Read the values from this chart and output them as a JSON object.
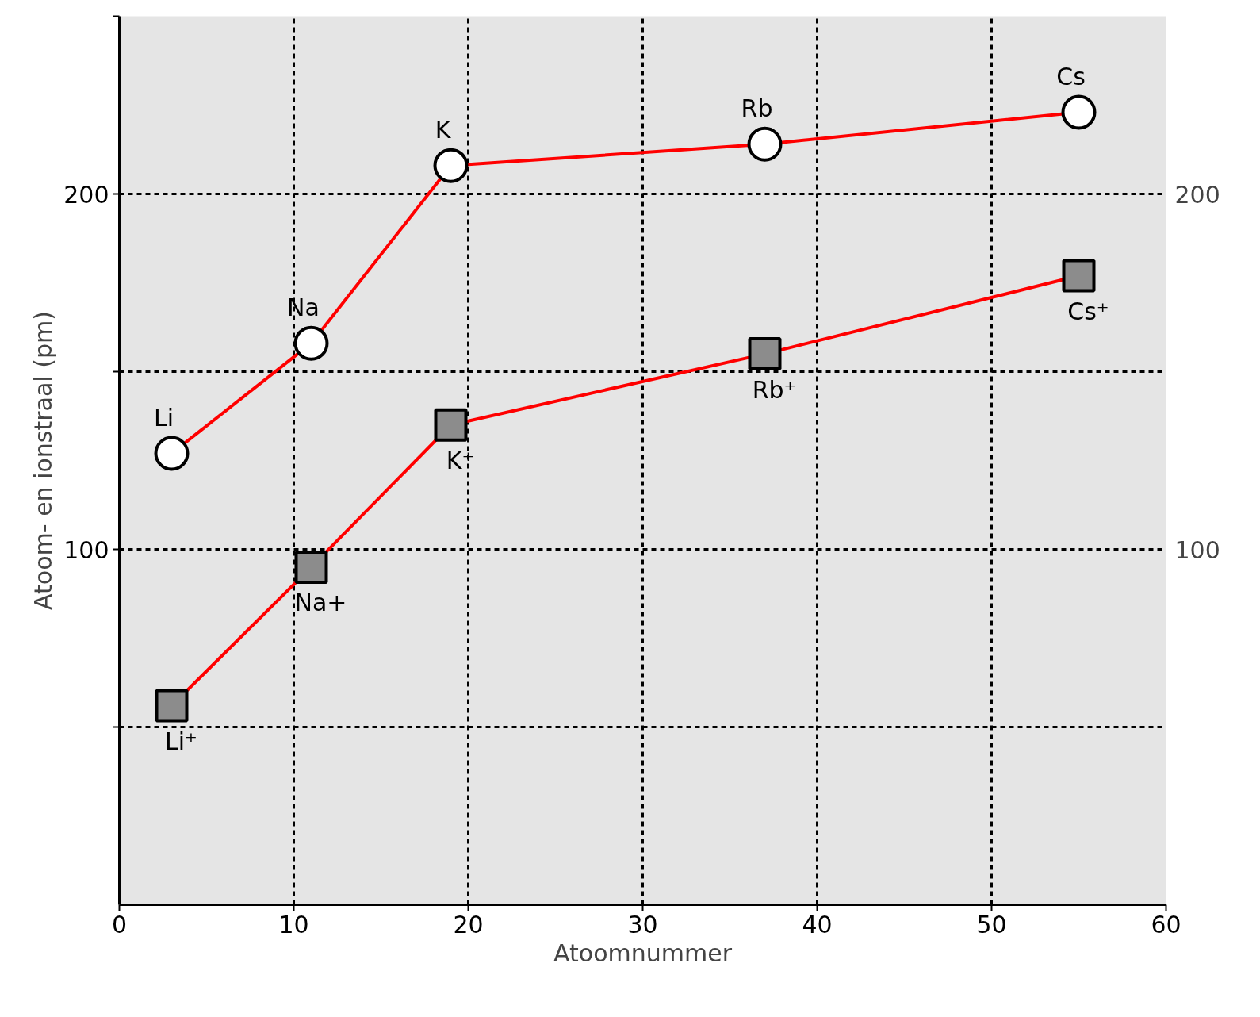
{
  "chart_data": {
    "type": "line",
    "xlabel": "Atoomnummer",
    "ylabel": "Atoom- en ionstraal (pm)",
    "xlim": [
      0,
      60
    ],
    "xticks": [
      0,
      10,
      20,
      30,
      40,
      50,
      60
    ],
    "ylim": [
      0,
      250
    ],
    "yticks": [
      {
        "value": 50,
        "label": null
      },
      100,
      {
        "value": 150,
        "label": null
      },
      200,
      {
        "value": 250,
        "label": null
      }
    ],
    "y2lim": [
      0,
      250
    ],
    "y2ticks": [
      100,
      200
    ],
    "grid": true,
    "series": [
      {
        "color": "#ff0000",
        "x": [
          3,
          11,
          19,
          37,
          55
        ],
        "values": [
          127,
          158,
          208,
          214,
          223
        ],
        "marker": "circle"
      },
      {
        "color": "#ff0000",
        "x": [
          3,
          11,
          19,
          37,
          55
        ],
        "values": [
          56,
          95,
          135,
          155,
          177
        ],
        "marker": "square"
      }
    ],
    "annotations": [
      "Li",
      "Na",
      "K",
      "Rb",
      "Cs",
      "Li⁺",
      "Na+",
      "K⁺",
      "Rb⁺",
      "Cs⁺"
    ]
  }
}
